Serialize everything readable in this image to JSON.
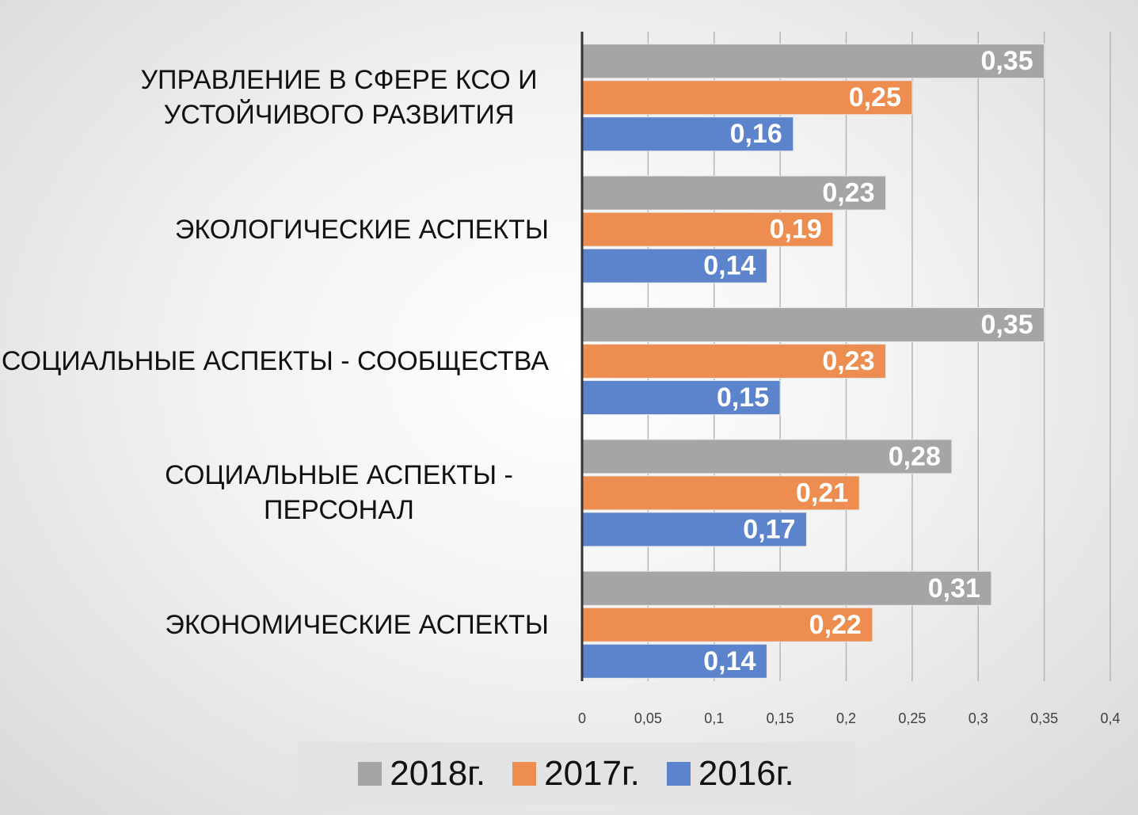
{
  "chart_data": {
    "type": "bar",
    "orientation": "horizontal",
    "categories": [
      "УПРАВЛЕНИЕ В СФЕРЕ КСО И УСТОЙЧИВОГО РАЗВИТИЯ",
      "ЭКОЛОГИЧЕСКИЕ АСПЕКТЫ",
      "СОЦИАЛЬНЫЕ АСПЕКТЫ - СООБЩЕСТВА",
      "СОЦИАЛЬНЫЕ АСПЕКТЫ - ПЕРСОНАЛ",
      "ЭКОНОМИЧЕСКИЕ АСПЕКТЫ"
    ],
    "series": [
      {
        "name": "2018г.",
        "color": "#a5a5a5",
        "values": [
          0.35,
          0.23,
          0.35,
          0.28,
          0.31
        ],
        "value_labels": [
          "0,35",
          "0,23",
          "0,35",
          "0,28",
          "0,31"
        ]
      },
      {
        "name": "2017г.",
        "color": "#ed8d4f",
        "values": [
          0.25,
          0.19,
          0.23,
          0.21,
          0.22
        ],
        "value_labels": [
          "0,25",
          "0,19",
          "0,23",
          "0,21",
          "0,22"
        ]
      },
      {
        "name": "2016г.",
        "color": "#5b84cc",
        "values": [
          0.16,
          0.14,
          0.15,
          0.17,
          0.14
        ],
        "value_labels": [
          "0,16",
          "0,14",
          "0,15",
          "0,17",
          "0,14"
        ]
      }
    ],
    "xlim": [
      0,
      0.4
    ],
    "xticks": [
      0,
      {
        "value": 0.05,
        "label": "0,05"
      },
      {
        "value": 0.1,
        "label": "0,1"
      },
      {
        "value": 0.15,
        "label": "0,15"
      },
      {
        "value": 0.2,
        "label": "0,2"
      },
      {
        "value": 0.25,
        "label": "0,25"
      },
      {
        "value": 0.3,
        "label": "0,3"
      },
      {
        "value": 0.35,
        "label": "0,35"
      },
      {
        "value": 0.4,
        "label": "0,4"
      }
    ],
    "grid": true,
    "legend": "bottom"
  }
}
